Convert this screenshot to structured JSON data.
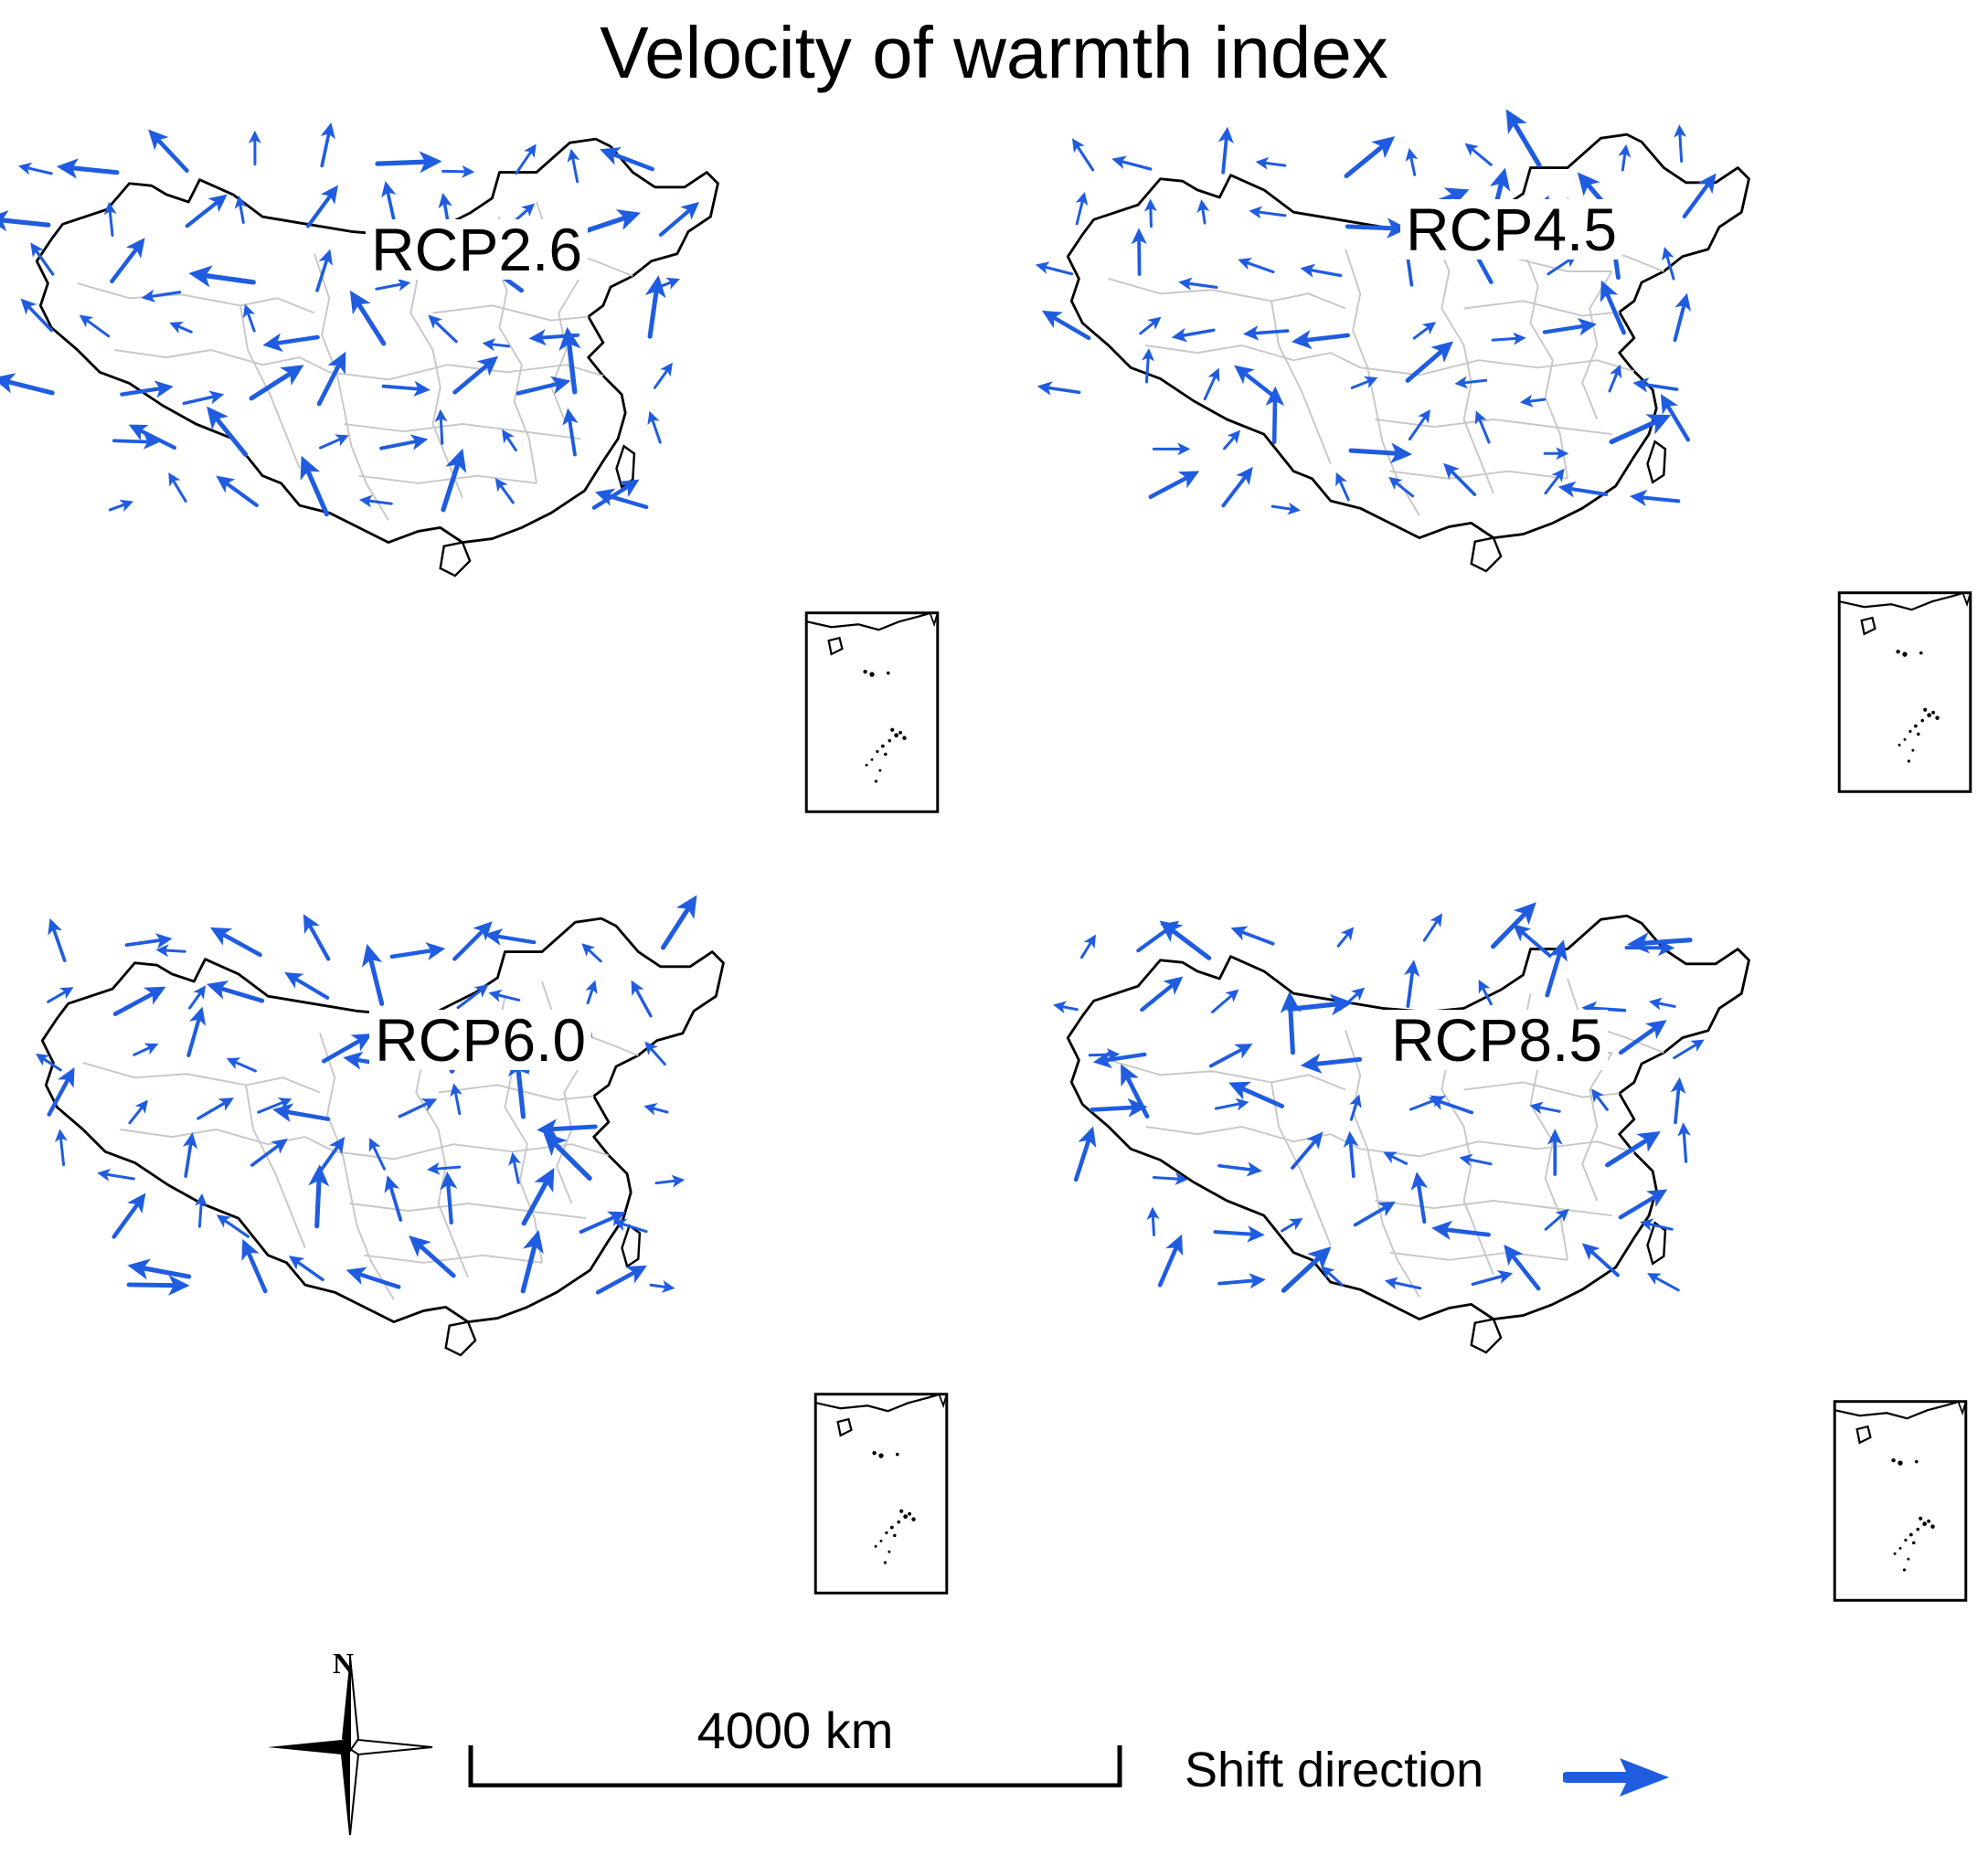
{
  "title": "Velocity of warmth index",
  "panels": [
    {
      "label": "RCP2.6"
    },
    {
      "label": "RCP4.5"
    },
    {
      "label": "RCP6.0"
    },
    {
      "label": "RCP8.5"
    }
  ],
  "legend": {
    "compass_north": "N",
    "scale_label": "4000 km",
    "shift_label": "Shift direction"
  },
  "colors": {
    "arrow": "#1f5ce0",
    "coast": "#000000",
    "province": "#c8c8c8"
  },
  "icons": {
    "compass": "north-arrow-compass-icon",
    "shift": "blue-arrow-icon"
  }
}
